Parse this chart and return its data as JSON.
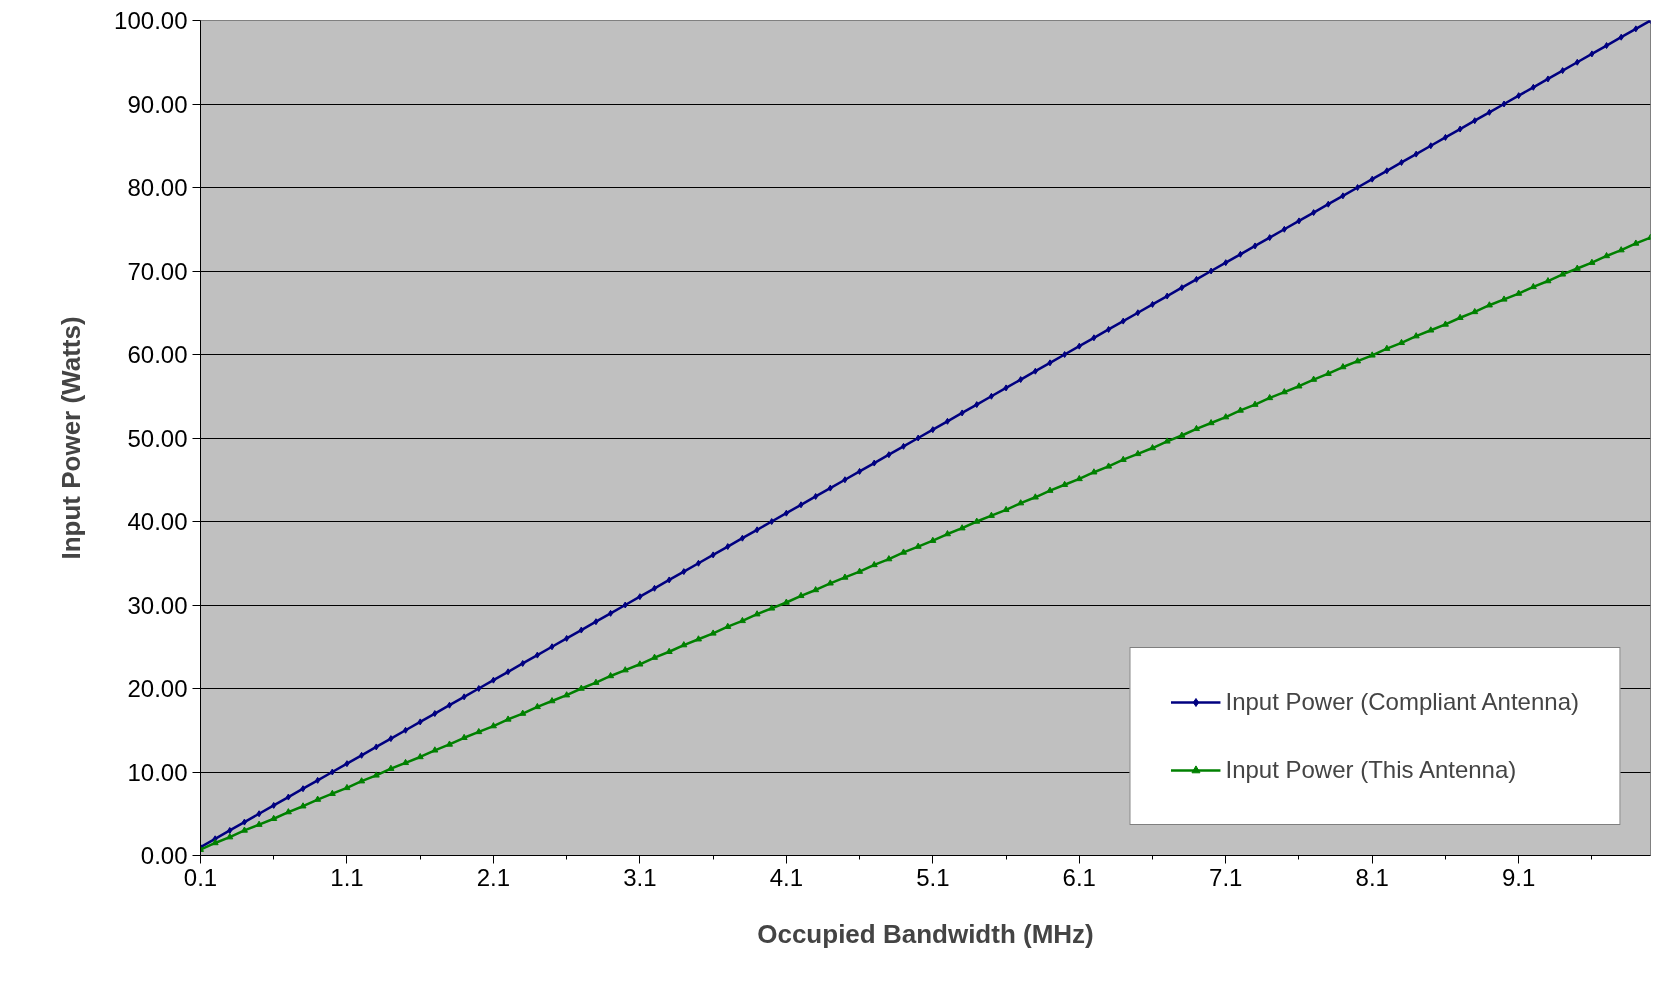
{
  "chart_data": {
    "type": "line",
    "xlabel": "Occupied Bandwidth (MHz)",
    "ylabel": "Input Power (Watts)",
    "categories": [
      "0.1",
      null,
      null,
      null,
      null,
      null,
      null,
      null,
      null,
      null,
      "1.1",
      null,
      null,
      null,
      null,
      null,
      null,
      null,
      null,
      null,
      "2.1",
      null,
      null,
      null,
      null,
      null,
      null,
      null,
      null,
      null,
      "3.1",
      null,
      null,
      null,
      null,
      null,
      null,
      null,
      null,
      null,
      "4.1",
      null,
      null,
      null,
      null,
      null,
      null,
      null,
      null,
      null,
      "5.1",
      null,
      null,
      null,
      null,
      null,
      null,
      null,
      null,
      null,
      "6.1",
      null,
      null,
      null,
      null,
      null,
      null,
      null,
      null,
      null,
      "7.1",
      null,
      null,
      null,
      null,
      null,
      null,
      null,
      null,
      null,
      "8.1",
      null,
      null,
      null,
      null,
      null,
      null,
      null,
      null,
      null,
      "9.1",
      null,
      null,
      null,
      null,
      null,
      null,
      null,
      null,
      null
    ],
    "series": [
      {
        "name": "Input Power (Compliant Antenna)",
        "color": "#000080",
        "marker": "diamond",
        "values": [
          1,
          2,
          3,
          4,
          5,
          6,
          7,
          8,
          9,
          10,
          11,
          12,
          13,
          14,
          15,
          16,
          17,
          18,
          19,
          20,
          21,
          22,
          23,
          24,
          25,
          26,
          27,
          28,
          29,
          30,
          31,
          32,
          33,
          34,
          35,
          36,
          37,
          38,
          39,
          40,
          41,
          42,
          43,
          44,
          45,
          46,
          47,
          48,
          49,
          50,
          51,
          52,
          53,
          54,
          55,
          56,
          57,
          58,
          59,
          60,
          61,
          62,
          63,
          64,
          65,
          66,
          67,
          68,
          69,
          70,
          71,
          72,
          73,
          74,
          75,
          76,
          77,
          78,
          79,
          80,
          81,
          82,
          83,
          84,
          85,
          86,
          87,
          88,
          89,
          90,
          91,
          92,
          93,
          94,
          95,
          96,
          97,
          98,
          99,
          100
        ]
      },
      {
        "name": "Input Power (This Antenna)",
        "color": "#008000",
        "marker": "triangle",
        "values": [
          0.7,
          1.5,
          2.2,
          3.0,
          3.7,
          4.4,
          5.2,
          5.9,
          6.7,
          7.4,
          8.1,
          8.9,
          9.6,
          10.4,
          11.1,
          11.8,
          12.6,
          13.3,
          14.1,
          14.8,
          15.5,
          16.3,
          17.0,
          17.8,
          18.5,
          19.2,
          20.0,
          20.7,
          21.5,
          22.2,
          22.9,
          23.7,
          24.4,
          25.2,
          25.9,
          26.6,
          27.4,
          28.1,
          28.9,
          29.6,
          30.3,
          31.1,
          31.8,
          32.6,
          33.3,
          34.0,
          34.8,
          35.5,
          36.3,
          37.0,
          37.7,
          38.5,
          39.2,
          40.0,
          40.7,
          41.4,
          42.2,
          42.9,
          43.7,
          44.4,
          45.1,
          45.9,
          46.6,
          47.4,
          48.1,
          48.8,
          49.6,
          50.3,
          51.1,
          51.8,
          52.5,
          53.3,
          54.0,
          54.8,
          55.5,
          56.2,
          57.0,
          57.7,
          58.5,
          59.2,
          59.9,
          60.7,
          61.4,
          62.2,
          62.9,
          63.6,
          64.4,
          65.1,
          65.9,
          66.6,
          67.3,
          68.1,
          68.8,
          69.6,
          70.3,
          71.0,
          71.8,
          72.5,
          73.3,
          74.0
        ]
      }
    ],
    "ylim": [
      0,
      100
    ],
    "yticks": [
      {
        "value": 0,
        "label": "0.00"
      },
      {
        "value": 10,
        "label": "10.00"
      },
      {
        "value": 20,
        "label": "20.00"
      },
      {
        "value": 30,
        "label": "30.00"
      },
      {
        "value": 40,
        "label": "40.00"
      },
      {
        "value": 50,
        "label": "50.00"
      },
      {
        "value": 60,
        "label": "60.00"
      },
      {
        "value": 70,
        "label": "70.00"
      },
      {
        "value": 80,
        "label": "80.00"
      },
      {
        "value": 90,
        "label": "90.00"
      },
      {
        "value": 100,
        "label": "100.00"
      }
    ],
    "grid": "y",
    "legend": "bottom right",
    "line_style": "solid"
  }
}
